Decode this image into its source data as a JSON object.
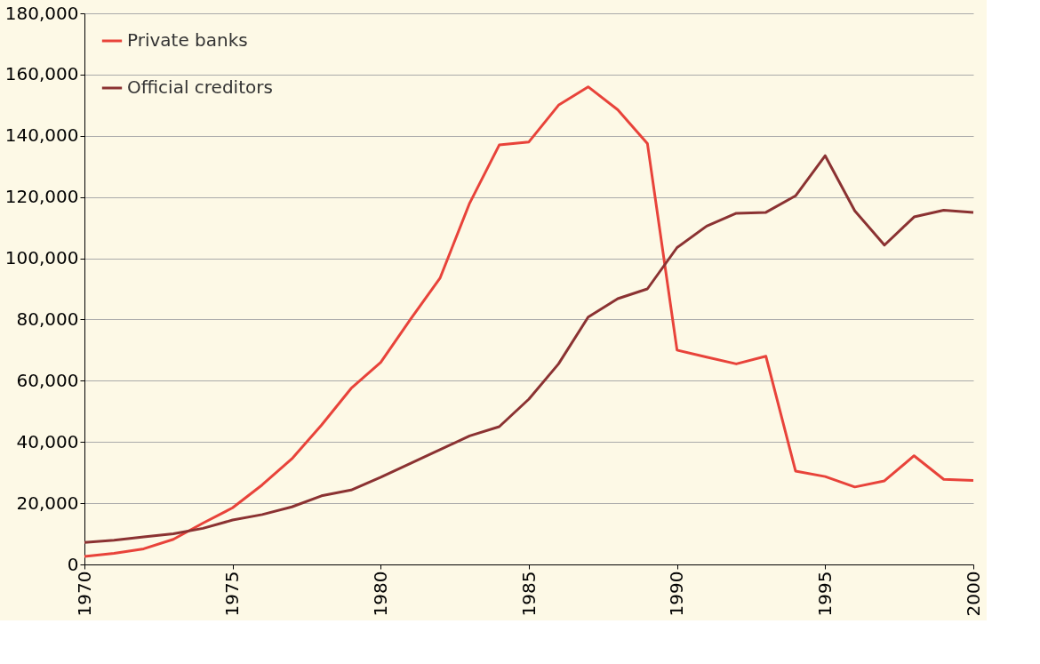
{
  "chart_data": {
    "type": "line",
    "x": [
      1970,
      1971,
      1972,
      1973,
      1974,
      1975,
      1976,
      1977,
      1978,
      1979,
      1980,
      1981,
      1982,
      1983,
      1984,
      1985,
      1986,
      1987,
      1988,
      1989,
      1990,
      1991,
      1992,
      1993,
      1994,
      1995,
      1996,
      1997,
      1998,
      1999,
      2000
    ],
    "series": [
      {
        "name": "Private banks",
        "color": "#e8433a",
        "values": [
          2600,
          3600,
          5100,
          8200,
          13500,
          18500,
          26000,
          34500,
          45500,
          57500,
          66000,
          80000,
          93500,
          118000,
          137000,
          138000,
          150000,
          156000,
          148500,
          137500,
          70000,
          67700,
          65500,
          68000,
          30500,
          28700,
          25300,
          27300,
          35500,
          27800,
          27400
        ]
      },
      {
        "name": "Official creditors",
        "color": "#8b3232",
        "values": [
          7200,
          7900,
          9000,
          10000,
          11800,
          14500,
          16300,
          18800,
          22400,
          24300,
          28500,
          33000,
          37500,
          42000,
          45000,
          54000,
          65500,
          80800,
          86800,
          90000,
          103500,
          110500,
          114700,
          115000,
          120400,
          133500,
          115500,
          104300,
          113500,
          115700,
          115000
        ]
      }
    ],
    "xlim": [
      1970,
      2000
    ],
    "xticks": [
      1970,
      1975,
      1980,
      1985,
      1990,
      1995,
      2000
    ],
    "ylim": [
      0,
      180000
    ],
    "yticks": [
      0,
      {
        "value": 20000,
        "label": "20,000"
      },
      {
        "value": 40000,
        "label": "40,000"
      },
      {
        "value": 60000,
        "label": "60,000"
      },
      {
        "value": 80000,
        "label": "80,000"
      },
      {
        "value": 100000,
        "label": "100,000"
      },
      {
        "value": 120000,
        "label": "120,000"
      },
      {
        "value": 140000,
        "label": "140,000"
      },
      {
        "value": 160000,
        "label": "160,000"
      },
      {
        "value": 180000,
        "label": "180,000"
      }
    ],
    "grid": "y",
    "legend": "top left",
    "marker": "none",
    "line_style": "solid"
  }
}
